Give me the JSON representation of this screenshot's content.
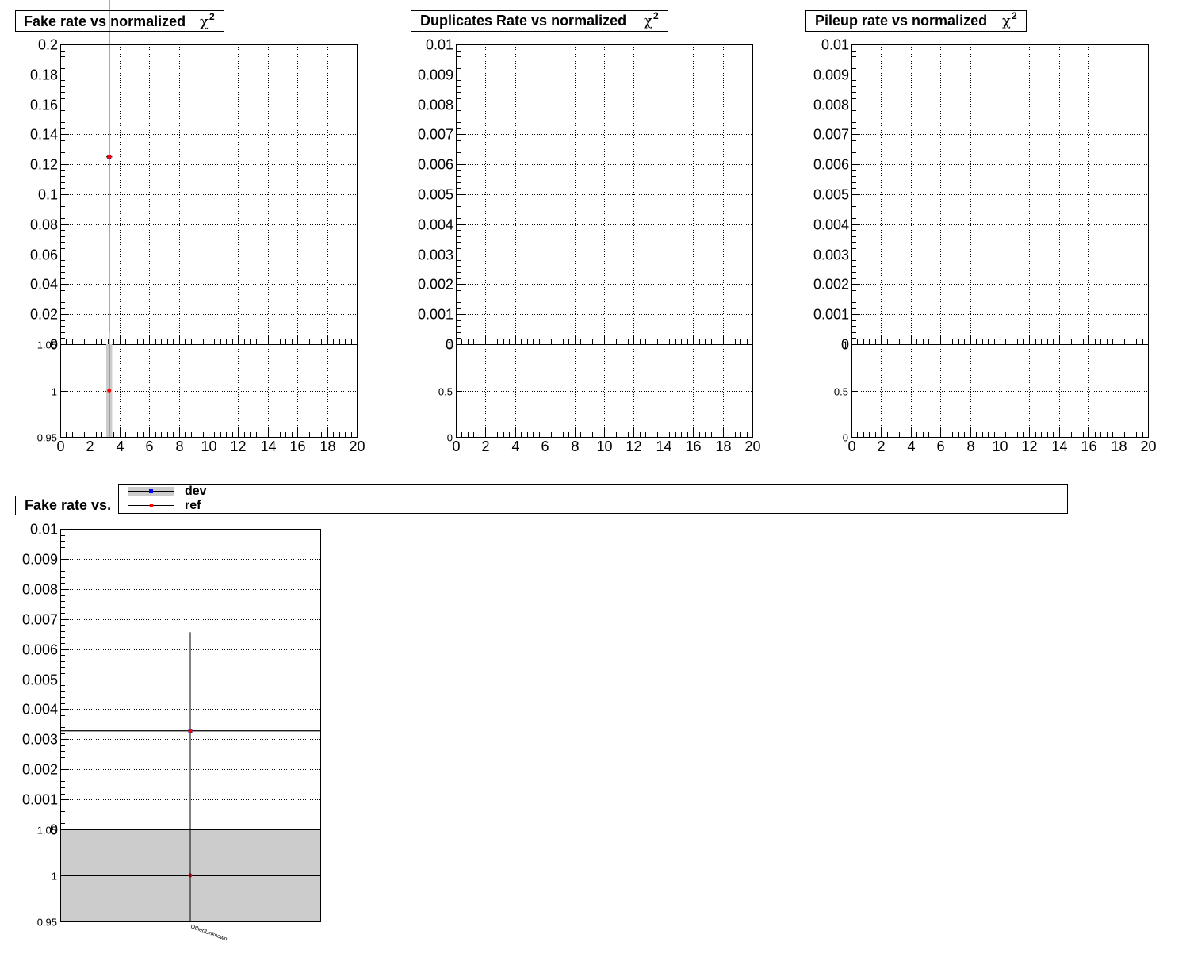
{
  "chart_data": [
    {
      "type": "scatter",
      "title": "Fake rate vs normalized χ²",
      "title_text": "Fake rate vs normalized",
      "title_symbol": "χ",
      "title_sup": "2",
      "xlim": [
        0,
        20
      ],
      "x_ticks": [
        "0",
        "2",
        "4",
        "6",
        "8",
        "10",
        "12",
        "14",
        "16",
        "18",
        "20"
      ],
      "ylim": [
        0,
        0.2
      ],
      "y_ticks": [
        "0",
        "0.02",
        "0.04",
        "0.06",
        "0.08",
        "0.1",
        "0.12",
        "0.14",
        "0.16",
        "0.18",
        "0.2"
      ],
      "ratio_ylim": [
        0.95,
        1.05
      ],
      "ratio_ticks": [
        "0.95",
        "1",
        "1.05"
      ],
      "grid": true,
      "series": [
        {
          "name": "dev",
          "points": [
            {
              "x": 3.3,
              "y": 0.125,
              "y_err_low": 0.125,
              "y_err_high": 0.125,
              "x_err": 0.2
            }
          ]
        },
        {
          "name": "ref",
          "points": [
            {
              "x": 3.3,
              "y": 0.125,
              "y_err_low": 0.117,
              "y_err_high": 0.125,
              "x_err": 0.2
            }
          ]
        }
      ],
      "ratio_points": [
        {
          "x": 3.3,
          "y": 1.0,
          "band_x": [
            3.1,
            3.5
          ]
        }
      ]
    },
    {
      "type": "scatter",
      "title": "Duplicates Rate vs normalized χ²",
      "title_text": "Duplicates Rate vs normalized",
      "title_symbol": "χ",
      "title_sup": "2",
      "xlim": [
        0,
        20
      ],
      "x_ticks": [
        "0",
        "2",
        "4",
        "6",
        "8",
        "10",
        "12",
        "14",
        "16",
        "18",
        "20"
      ],
      "ylim": [
        0,
        0.01
      ],
      "y_ticks": [
        "0",
        "0.001",
        "0.002",
        "0.003",
        "0.004",
        "0.005",
        "0.006",
        "0.007",
        "0.008",
        "0.009",
        "0.01"
      ],
      "ratio_ylim": [
        0,
        1
      ],
      "ratio_ticks": [
        "0",
        "0.5",
        "1"
      ],
      "grid": true,
      "series": [],
      "ratio_points": []
    },
    {
      "type": "scatter",
      "title": "Pileup rate vs normalized χ²",
      "title_text": "Pileup rate vs normalized",
      "title_symbol": "χ",
      "title_sup": "2",
      "xlim": [
        0,
        20
      ],
      "x_ticks": [
        "0",
        "2",
        "4",
        "6",
        "8",
        "10",
        "12",
        "14",
        "16",
        "18",
        "20"
      ],
      "ylim": [
        0,
        0.01
      ],
      "y_ticks": [
        "0",
        "0.001",
        "0.002",
        "0.003",
        "0.004",
        "0.005",
        "0.006",
        "0.007",
        "0.008",
        "0.009",
        "0.01"
      ],
      "ratio_ylim": [
        0,
        1
      ],
      "ratio_ticks": [
        "0",
        "0.5",
        "1"
      ],
      "grid": true,
      "series": [],
      "ratio_points": []
    },
    {
      "type": "bar",
      "title_text": "Fake rate vs.",
      "categories": [
        "Other/Unknown"
      ],
      "ylim": [
        0,
        0.01
      ],
      "y_ticks": [
        "0",
        "0.001",
        "0.002",
        "0.003",
        "0.004",
        "0.005",
        "0.006",
        "0.007",
        "0.008",
        "0.009",
        "0.01"
      ],
      "ratio_ylim": [
        0.95,
        1.05
      ],
      "ratio_ticks": [
        "0.95",
        "1",
        "1.05"
      ],
      "grid": true,
      "series": [
        {
          "name": "dev",
          "values": [
            0.00328
          ],
          "y_err": [
            0.00328
          ]
        },
        {
          "name": "ref",
          "values": [
            0.00328
          ],
          "y_err": [
            0.00328
          ]
        }
      ],
      "ratio_values": [
        1.0
      ]
    }
  ],
  "legend": {
    "entries": [
      {
        "label": "dev",
        "color": "#0000ff",
        "band_color": "#cccccc"
      },
      {
        "label": "ref",
        "color": "#ff0000"
      }
    ]
  },
  "colors": {
    "dev": "#0000ff",
    "ref": "#ff0000",
    "band": "#cccccc",
    "grid": "#000000"
  }
}
